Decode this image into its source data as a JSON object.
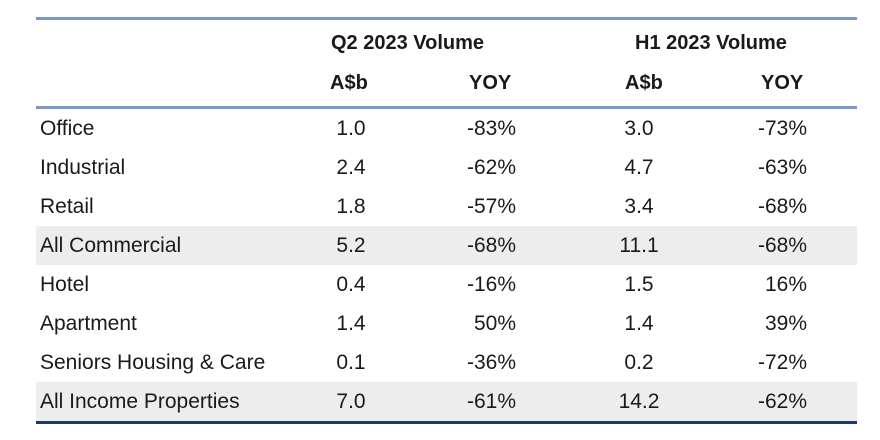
{
  "table": {
    "groups": {
      "q2": "Q2 2023 Volume",
      "h1": "H1 2023 Volume"
    },
    "columns": {
      "q2_value": "A$b",
      "q2_yoy": "YOY",
      "h1_value": "A$b",
      "h1_yoy": "YOY"
    },
    "rows": [
      {
        "name": "Office",
        "q2_value": "1.0",
        "q2_yoy": "-83%",
        "h1_value": "3.0",
        "h1_yoy": "-73%",
        "shaded": false
      },
      {
        "name": "Industrial",
        "q2_value": "2.4",
        "q2_yoy": "-62%",
        "h1_value": "4.7",
        "h1_yoy": "-63%",
        "shaded": false
      },
      {
        "name": "Retail",
        "q2_value": "1.8",
        "q2_yoy": "-57%",
        "h1_value": "3.4",
        "h1_yoy": "-68%",
        "shaded": false
      },
      {
        "name": "All Commercial",
        "q2_value": "5.2",
        "q2_yoy": "-68%",
        "h1_value": "11.1",
        "h1_yoy": "-68%",
        "shaded": true
      },
      {
        "name": "Hotel",
        "q2_value": "0.4",
        "q2_yoy": "-16%",
        "h1_value": "1.5",
        "h1_yoy": "16%",
        "shaded": false
      },
      {
        "name": "Apartment",
        "q2_value": "1.4",
        "q2_yoy": "50%",
        "h1_value": "1.4",
        "h1_yoy": "39%",
        "shaded": false
      },
      {
        "name": "Seniors Housing & Care",
        "q2_value": "0.1",
        "q2_yoy": "-36%",
        "h1_value": "0.2",
        "h1_yoy": "-72%",
        "shaded": false
      },
      {
        "name": "All Income Properties",
        "q2_value": "7.0",
        "q2_yoy": "-61%",
        "h1_value": "14.2",
        "h1_yoy": "-62%",
        "shaded": true
      }
    ]
  },
  "colors": {
    "header_rule": "#7b95c9",
    "bottom_rule": "#1f3a68",
    "shaded_row": "#ededed"
  }
}
